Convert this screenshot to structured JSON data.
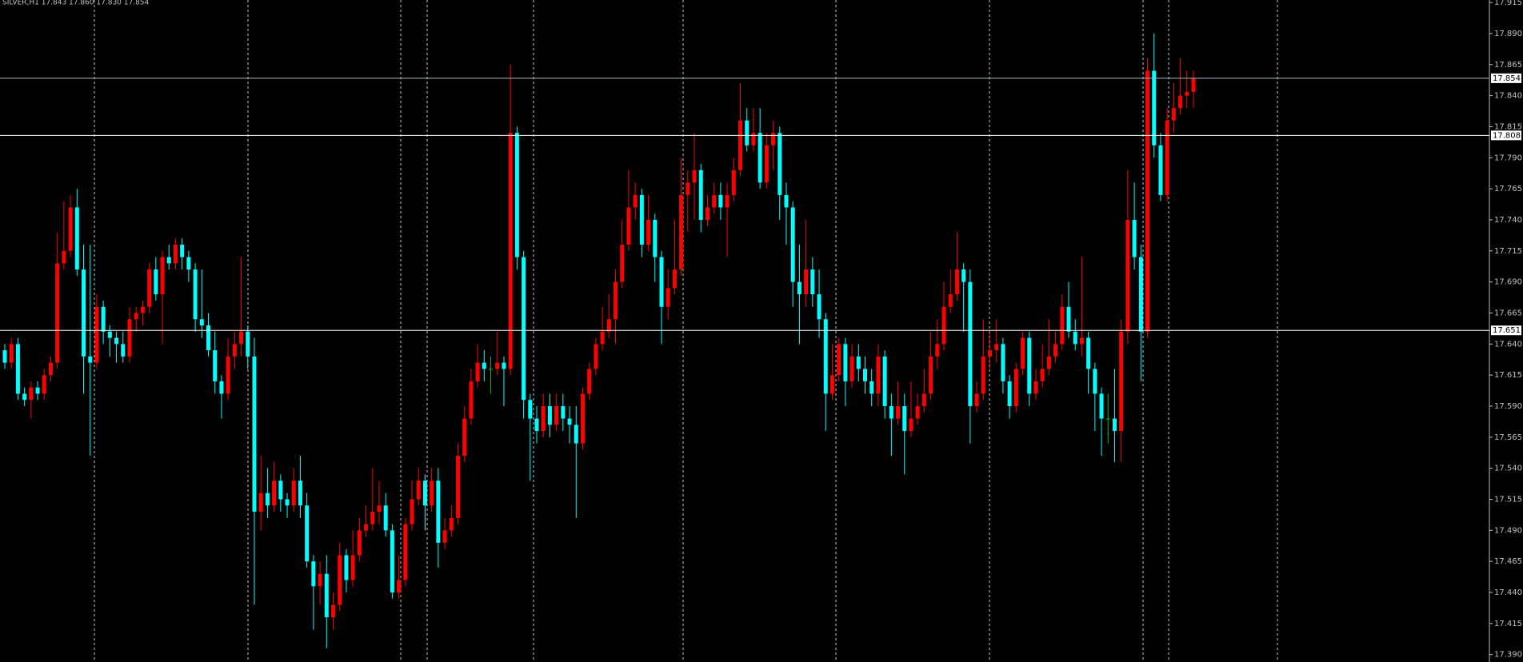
{
  "chart_data": {
    "type": "candlestick",
    "title": "SILVER,H1  17.843 17.860 17.830 17.854",
    "up_color": "#ff0000",
    "down_color": "#00ffff",
    "doji_color": "#00c000",
    "ylim": [
      17.384,
      17.917
    ],
    "yticks": [
      17.915,
      {
        "value": 17.89,
        "label": "17.890"
      },
      17.865,
      {
        "value": 17.84,
        "label": "17.840"
      },
      17.815,
      {
        "value": 17.79,
        "label": "17.790"
      },
      17.765,
      {
        "value": 17.74,
        "label": "17.740"
      },
      17.715,
      {
        "value": 17.69,
        "label": "17.690"
      },
      17.665,
      {
        "value": 17.64,
        "label": "17.640"
      },
      17.615,
      {
        "value": 17.59,
        "label": "17.590"
      },
      17.565,
      {
        "value": 17.54,
        "label": "17.540"
      },
      17.515,
      {
        "value": 17.49,
        "label": "17.490"
      },
      17.465,
      {
        "value": 17.44,
        "label": "17.440"
      },
      17.415,
      {
        "value": 17.39,
        "label": "17.390"
      }
    ],
    "levels": [
      17.854,
      17.808,
      17.651
    ],
    "open": [
      17.635,
      17.625,
      17.64,
      17.6,
      17.595,
      17.605,
      17.6,
      17.615,
      17.625,
      17.705,
      17.715,
      17.75,
      17.7,
      17.63,
      17.625,
      17.67,
      17.65,
      17.645,
      17.64,
      17.63,
      17.66,
      17.665,
      17.67,
      17.7,
      17.68,
      17.71,
      17.705,
      17.72,
      17.71,
      17.7,
      17.66,
      17.655,
      17.635,
      17.61,
      17.6,
      17.63,
      17.64,
      17.65,
      17.63,
      17.505,
      17.52,
      17.51,
      17.53,
      17.515,
      17.51,
      17.53,
      17.51,
      17.465,
      17.445,
      17.455,
      17.42,
      17.43,
      17.47,
      17.45,
      17.47,
      17.49,
      17.495,
      17.505,
      17.51,
      17.49,
      17.44,
      17.45,
      17.495,
      17.515,
      17.53,
      17.51,
      17.53,
      17.48,
      17.49,
      17.5,
      17.55,
      17.58,
      17.61,
      17.625,
      17.62,
      17.62,
      17.625,
      17.62,
      17.81,
      17.71,
      17.595,
      17.58,
      17.57,
      17.59,
      17.575,
      17.59,
      17.58,
      17.575,
      17.56,
      17.6,
      17.62,
      17.64,
      17.65,
      17.66,
      17.69,
      17.72,
      17.75,
      17.76,
      17.72,
      17.74,
      17.71,
      17.67,
      17.685,
      17.7,
      17.76,
      17.77,
      17.78,
      17.74,
      17.75,
      17.76,
      17.75,
      17.76,
      17.78,
      17.82,
      17.8,
      17.81,
      17.77,
      17.8,
      17.81,
      17.76,
      17.75,
      17.69,
      17.68,
      17.7,
      17.68,
      17.66,
      17.6,
      17.615,
      17.64,
      17.61,
      17.63,
      17.62,
      17.61,
      17.6,
      17.63,
      17.59,
      17.58,
      17.59,
      17.57,
      17.58,
      17.59,
      17.6,
      17.63,
      17.64,
      17.67,
      17.68,
      17.7,
      17.69,
      17.59,
      17.6,
      17.63,
      17.635,
      17.64,
      17.61,
      17.59,
      17.62,
      17.645,
      17.6,
      17.61,
      17.62,
      17.63,
      17.64,
      17.67,
      17.65,
      17.64,
      17.645,
      17.62,
      17.6,
      17.58,
      17.58,
      17.57,
      17.65,
      17.74,
      17.71,
      17.65,
      17.86,
      17.8,
      17.76,
      17.82,
      17.83,
      17.84,
      17.843
    ],
    "high": [
      17.64,
      17.645,
      17.645,
      17.605,
      17.61,
      17.61,
      17.62,
      17.63,
      17.73,
      17.755,
      17.76,
      17.765,
      17.72,
      17.72,
      17.68,
      17.675,
      17.655,
      17.65,
      17.65,
      17.67,
      17.67,
      17.675,
      17.705,
      17.71,
      17.715,
      17.72,
      17.725,
      17.725,
      17.715,
      17.705,
      17.7,
      17.665,
      17.65,
      17.615,
      17.645,
      17.65,
      17.71,
      17.655,
      17.645,
      17.55,
      17.54,
      17.545,
      17.535,
      17.52,
      17.54,
      17.55,
      17.52,
      17.47,
      17.465,
      17.47,
      17.44,
      17.48,
      17.475,
      17.49,
      17.5,
      17.51,
      17.54,
      17.53,
      17.52,
      17.495,
      17.47,
      17.5,
      17.53,
      17.54,
      17.535,
      17.54,
      17.54,
      17.5,
      17.51,
      17.56,
      17.59,
      17.62,
      17.64,
      17.635,
      17.63,
      17.65,
      17.63,
      17.865,
      17.815,
      17.715,
      17.6,
      17.59,
      17.6,
      17.6,
      17.6,
      17.6,
      17.59,
      17.59,
      17.605,
      17.625,
      17.645,
      17.67,
      17.68,
      17.7,
      17.74,
      17.78,
      17.77,
      17.765,
      17.76,
      17.745,
      17.715,
      17.7,
      17.74,
      17.79,
      17.78,
      17.81,
      17.785,
      17.76,
      17.77,
      17.77,
      17.77,
      17.79,
      17.85,
      17.83,
      17.83,
      17.83,
      17.81,
      17.82,
      17.815,
      17.77,
      17.755,
      17.72,
      17.74,
      17.71,
      17.7,
      17.665,
      17.64,
      17.645,
      17.645,
      17.64,
      17.64,
      17.63,
      17.62,
      17.64,
      17.635,
      17.6,
      17.61,
      17.6,
      17.61,
      17.6,
      17.62,
      17.65,
      17.66,
      17.69,
      17.7,
      17.73,
      17.705,
      17.7,
      17.61,
      17.66,
      17.65,
      17.66,
      17.645,
      17.615,
      17.625,
      17.65,
      17.65,
      17.62,
      17.64,
      17.66,
      17.65,
      17.68,
      17.69,
      17.66,
      17.71,
      17.65,
      17.625,
      17.605,
      17.6,
      17.62,
      17.66,
      17.78,
      17.77,
      17.72,
      17.87,
      17.89,
      17.81,
      17.83,
      17.85,
      17.87,
      17.86,
      17.86
    ],
    "low": [
      17.62,
      17.62,
      17.595,
      17.59,
      17.58,
      17.595,
      17.595,
      17.61,
      17.62,
      17.7,
      17.71,
      17.695,
      17.6,
      17.55,
      17.62,
      17.64,
      17.63,
      17.625,
      17.625,
      17.625,
      17.65,
      17.655,
      17.665,
      17.675,
      17.64,
      17.7,
      17.7,
      17.7,
      17.69,
      17.65,
      17.645,
      17.63,
      17.6,
      17.58,
      17.595,
      17.62,
      17.63,
      17.62,
      17.43,
      17.49,
      17.5,
      17.505,
      17.505,
      17.5,
      17.505,
      17.5,
      17.46,
      17.41,
      17.43,
      17.395,
      17.41,
      17.425,
      17.44,
      17.445,
      17.465,
      17.485,
      17.49,
      17.495,
      17.485,
      17.435,
      17.435,
      17.445,
      17.49,
      17.51,
      17.49,
      17.505,
      17.46,
      17.475,
      17.485,
      17.495,
      17.545,
      17.575,
      17.605,
      17.61,
      17.6,
      17.615,
      17.59,
      17.615,
      17.7,
      17.58,
      17.53,
      17.56,
      17.565,
      17.565,
      17.57,
      17.57,
      17.56,
      17.5,
      17.555,
      17.595,
      17.615,
      17.635,
      17.645,
      17.64,
      17.685,
      17.715,
      17.74,
      17.71,
      17.715,
      17.69,
      17.64,
      17.66,
      17.68,
      17.695,
      17.73,
      17.74,
      17.73,
      17.735,
      17.745,
      17.74,
      17.71,
      17.755,
      17.775,
      17.795,
      17.795,
      17.765,
      17.765,
      17.78,
      17.74,
      17.72,
      17.67,
      17.64,
      17.67,
      17.67,
      17.645,
      17.57,
      17.595,
      17.61,
      17.59,
      17.605,
      17.61,
      17.6,
      17.59,
      17.59,
      17.58,
      17.55,
      17.575,
      17.535,
      17.565,
      17.575,
      17.585,
      17.595,
      17.62,
      17.635,
      17.665,
      17.675,
      17.65,
      17.56,
      17.585,
      17.595,
      17.62,
      17.625,
      17.6,
      17.58,
      17.585,
      17.615,
      17.59,
      17.595,
      17.605,
      17.615,
      17.625,
      17.635,
      17.645,
      17.635,
      17.63,
      17.6,
      17.57,
      17.55,
      17.56,
      17.545,
      17.545,
      17.64,
      17.7,
      17.61,
      17.645,
      17.79,
      17.755,
      17.755,
      17.81,
      17.825,
      17.83,
      17.83
    ],
    "close": [
      17.625,
      17.64,
      17.6,
      17.595,
      17.605,
      17.6,
      17.615,
      17.625,
      17.705,
      17.715,
      17.75,
      17.7,
      17.63,
      17.625,
      17.67,
      17.65,
      17.645,
      17.64,
      17.63,
      17.66,
      17.665,
      17.67,
      17.7,
      17.68,
      17.71,
      17.705,
      17.72,
      17.71,
      17.7,
      17.66,
      17.655,
      17.635,
      17.61,
      17.6,
      17.63,
      17.64,
      17.65,
      17.63,
      17.505,
      17.52,
      17.51,
      17.53,
      17.515,
      17.51,
      17.53,
      17.51,
      17.465,
      17.445,
      17.455,
      17.42,
      17.43,
      17.47,
      17.45,
      17.47,
      17.49,
      17.495,
      17.505,
      17.51,
      17.49,
      17.44,
      17.45,
      17.495,
      17.515,
      17.53,
      17.51,
      17.53,
      17.48,
      17.49,
      17.5,
      17.55,
      17.58,
      17.61,
      17.625,
      17.62,
      17.62,
      17.625,
      17.62,
      17.81,
      17.71,
      17.595,
      17.58,
      17.57,
      17.59,
      17.575,
      17.59,
      17.58,
      17.575,
      17.56,
      17.6,
      17.62,
      17.64,
      17.65,
      17.66,
      17.69,
      17.72,
      17.75,
      17.76,
      17.72,
      17.74,
      17.71,
      17.67,
      17.685,
      17.7,
      17.76,
      17.77,
      17.78,
      17.74,
      17.75,
      17.76,
      17.75,
      17.76,
      17.78,
      17.82,
      17.8,
      17.81,
      17.77,
      17.8,
      17.81,
      17.76,
      17.75,
      17.69,
      17.68,
      17.7,
      17.68,
      17.66,
      17.6,
      17.615,
      17.64,
      17.61,
      17.63,
      17.62,
      17.61,
      17.6,
      17.63,
      17.59,
      17.58,
      17.59,
      17.57,
      17.58,
      17.59,
      17.6,
      17.63,
      17.64,
      17.67,
      17.68,
      17.7,
      17.69,
      17.59,
      17.6,
      17.63,
      17.635,
      17.64,
      17.61,
      17.59,
      17.62,
      17.645,
      17.6,
      17.61,
      17.62,
      17.63,
      17.64,
      17.67,
      17.65,
      17.64,
      17.645,
      17.62,
      17.6,
      17.58,
      17.58,
      17.57,
      17.65,
      17.74,
      17.71,
      17.65,
      17.86,
      17.8,
      17.76,
      17.82,
      17.83,
      17.84,
      17.843,
      17.854
    ]
  }
}
